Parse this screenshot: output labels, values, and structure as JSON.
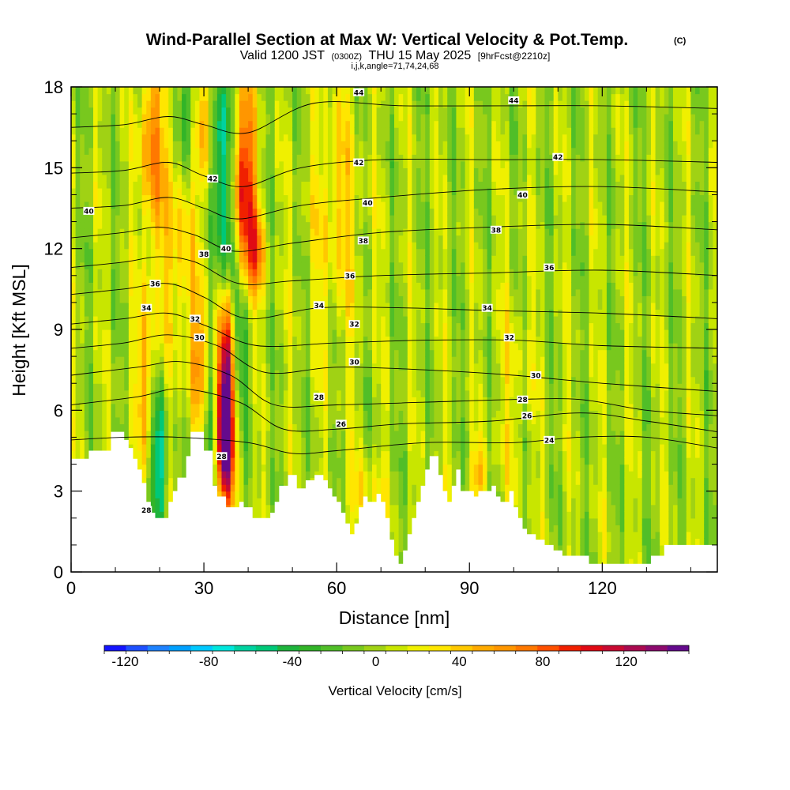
{
  "header": {
    "title": "Wind-Parallel Section at Max W: Vertical Velocity & Pot.Temp.",
    "copyright": "(C)",
    "valid_prefix": "Valid 1200 JST",
    "valid_utc": "(0300Z)",
    "valid_date": "THU 15 May 2025",
    "forecast": "[9hrFcst@2210z]",
    "indices": "i,j,k,angle=71,74,24,68"
  },
  "chart_data": {
    "type": "heatmap",
    "xlabel": "Distance [nm]",
    "ylabel": "Height [Kft MSL]",
    "xlim": [
      0,
      146
    ],
    "ylim": [
      0,
      18
    ],
    "x_ticks": [
      0,
      30,
      60,
      90,
      120
    ],
    "y_ticks": [
      0,
      3,
      6,
      9,
      12,
      15,
      18
    ],
    "colorbar": {
      "label": "Vertical Velocity [cm/s]",
      "range": [
        -130,
        150
      ],
      "ticks": [
        -120,
        -80,
        -40,
        0,
        40,
        80,
        120
      ],
      "colors": [
        "#1414ff",
        "#1e50ff",
        "#1e82ff",
        "#00a0ff",
        "#00c8ff",
        "#00e6dc",
        "#00d2a0",
        "#00c878",
        "#1eb43c",
        "#32b428",
        "#50be28",
        "#78c81e",
        "#a0d214",
        "#c8e600",
        "#f0f000",
        "#ffe600",
        "#ffc800",
        "#ffaa00",
        "#ff9600",
        "#ff7800",
        "#ff5000",
        "#f02000",
        "#e00a14",
        "#c80a32",
        "#aa0a50",
        "#8c0a6e",
        "#640a8c"
      ]
    },
    "terrain_kft": [
      [
        0,
        4.2
      ],
      [
        4,
        4.2
      ],
      [
        4,
        4.5
      ],
      [
        9,
        4.5
      ],
      [
        9,
        5.2
      ],
      [
        12,
        5.2
      ],
      [
        12,
        4.9
      ],
      [
        13,
        4.9
      ],
      [
        13,
        4.6
      ],
      [
        14,
        4.6
      ],
      [
        14,
        4.2
      ],
      [
        15,
        4.2
      ],
      [
        15,
        3.8
      ],
      [
        16,
        3.8
      ],
      [
        16,
        3.3
      ],
      [
        17,
        3.3
      ],
      [
        17,
        2.6
      ],
      [
        18,
        2.6
      ],
      [
        18,
        2.2
      ],
      [
        19,
        2.2
      ],
      [
        19,
        2.0
      ],
      [
        22,
        2.0
      ],
      [
        22,
        2.6
      ],
      [
        23,
        2.6
      ],
      [
        23,
        3.0
      ],
      [
        24,
        3.0
      ],
      [
        24,
        3.5
      ],
      [
        26,
        3.5
      ],
      [
        26,
        4.3
      ],
      [
        27,
        4.3
      ],
      [
        27,
        5.2
      ],
      [
        30,
        5.2
      ],
      [
        30,
        4.5
      ],
      [
        32,
        4.5
      ],
      [
        32,
        3.2
      ],
      [
        33,
        3.2
      ],
      [
        33,
        2.8
      ],
      [
        35,
        2.8
      ],
      [
        35,
        2.4
      ],
      [
        38,
        2.4
      ],
      [
        38,
        2.6
      ],
      [
        39,
        2.6
      ],
      [
        39,
        2.4
      ],
      [
        41,
        2.4
      ],
      [
        41,
        2.0
      ],
      [
        45,
        2.0
      ],
      [
        45,
        2.2
      ],
      [
        46,
        2.2
      ],
      [
        46,
        2.6
      ],
      [
        47,
        2.6
      ],
      [
        47,
        3.2
      ],
      [
        49,
        3.2
      ],
      [
        49,
        3.6
      ],
      [
        51,
        3.6
      ],
      [
        51,
        3.1
      ],
      [
        53,
        3.1
      ],
      [
        53,
        3.4
      ],
      [
        55,
        3.4
      ],
      [
        55,
        3.6
      ],
      [
        57,
        3.6
      ],
      [
        57,
        3.4
      ],
      [
        58,
        3.4
      ],
      [
        58,
        3.1
      ],
      [
        59,
        3.1
      ],
      [
        59,
        2.8
      ],
      [
        60,
        2.8
      ],
      [
        60,
        2.6
      ],
      [
        61,
        2.6
      ],
      [
        61,
        2.2
      ],
      [
        62,
        2.2
      ],
      [
        62,
        1.8
      ],
      [
        63,
        1.8
      ],
      [
        63,
        1.4
      ],
      [
        64,
        1.4
      ],
      [
        64,
        1.8
      ],
      [
        65,
        1.8
      ],
      [
        65,
        2.4
      ],
      [
        66,
        2.4
      ],
      [
        66,
        2.8
      ],
      [
        67,
        2.8
      ],
      [
        67,
        2.6
      ],
      [
        69,
        2.6
      ],
      [
        69,
        2.9
      ],
      [
        70,
        2.9
      ],
      [
        70,
        2.6
      ],
      [
        71,
        2.6
      ],
      [
        71,
        2.0
      ],
      [
        72,
        2.0
      ],
      [
        72,
        1.2
      ],
      [
        73,
        1.2
      ],
      [
        73,
        0.6
      ],
      [
        74,
        0.6
      ],
      [
        74,
        0.3
      ],
      [
        75,
        0.3
      ],
      [
        75,
        0.8
      ],
      [
        76,
        0.8
      ],
      [
        76,
        1.4
      ],
      [
        77,
        1.4
      ],
      [
        77,
        2.0
      ],
      [
        78,
        2.0
      ],
      [
        78,
        2.6
      ],
      [
        79,
        2.6
      ],
      [
        79,
        3.2
      ],
      [
        80,
        3.2
      ],
      [
        80,
        3.8
      ],
      [
        81,
        3.8
      ],
      [
        81,
        4.3
      ],
      [
        83,
        4.3
      ],
      [
        83,
        3.6
      ],
      [
        84,
        3.6
      ],
      [
        84,
        3.0
      ],
      [
        85,
        3.0
      ],
      [
        85,
        2.6
      ],
      [
        86,
        2.6
      ],
      [
        86,
        3.2
      ],
      [
        87,
        3.2
      ],
      [
        87,
        3.8
      ],
      [
        88,
        3.8
      ],
      [
        88,
        3.0
      ],
      [
        91,
        3.0
      ],
      [
        91,
        2.8
      ],
      [
        92,
        2.8
      ],
      [
        92,
        3.0
      ],
      [
        95,
        3.0
      ],
      [
        95,
        3.2
      ],
      [
        96,
        3.2
      ],
      [
        96,
        2.8
      ],
      [
        97,
        2.8
      ],
      [
        97,
        2.6
      ],
      [
        99,
        2.6
      ],
      [
        99,
        3.0
      ],
      [
        100,
        3.0
      ],
      [
        100,
        2.4
      ],
      [
        101,
        2.4
      ],
      [
        101,
        2.0
      ],
      [
        102,
        2.0
      ],
      [
        102,
        1.6
      ],
      [
        103,
        1.6
      ],
      [
        103,
        1.4
      ],
      [
        105,
        1.4
      ],
      [
        105,
        1.2
      ],
      [
        107,
        1.2
      ],
      [
        107,
        1.0
      ],
      [
        109,
        1.0
      ],
      [
        109,
        0.8
      ],
      [
        111,
        0.8
      ],
      [
        111,
        0.6
      ],
      [
        117,
        0.6
      ],
      [
        117,
        0.3
      ],
      [
        131,
        0.3
      ],
      [
        131,
        0.6
      ],
      [
        134,
        0.6
      ],
      [
        134,
        1.0
      ],
      [
        146,
        1.0
      ]
    ],
    "theta_contours": [
      {
        "label": "24",
        "pts": [
          [
            0,
            4.9
          ],
          [
            12,
            5.0
          ],
          [
            24,
            5.0
          ],
          [
            40,
            4.8
          ],
          [
            50,
            4.4
          ],
          [
            60,
            4.5
          ],
          [
            80,
            4.8
          ],
          [
            100,
            4.8
          ],
          [
            115,
            5.0
          ],
          [
            130,
            5.0
          ],
          [
            146,
            4.6
          ]
        ]
      },
      {
        "label": "26",
        "pts": [
          [
            0,
            6.2
          ],
          [
            15,
            6.5
          ],
          [
            25,
            6.8
          ],
          [
            38,
            6.3
          ],
          [
            48,
            5.3
          ],
          [
            60,
            5.3
          ],
          [
            75,
            5.5
          ],
          [
            95,
            5.6
          ],
          [
            115,
            5.9
          ],
          [
            130,
            5.6
          ],
          [
            146,
            5.2
          ]
        ]
      },
      {
        "label": "28",
        "pts": [
          [
            0,
            7.3
          ],
          [
            15,
            7.6
          ],
          [
            25,
            7.8
          ],
          [
            36,
            7.3
          ],
          [
            46,
            6.2
          ],
          [
            60,
            6.2
          ],
          [
            80,
            6.3
          ],
          [
            100,
            6.4
          ],
          [
            115,
            6.4
          ],
          [
            130,
            6.0
          ],
          [
            146,
            5.8
          ]
        ]
      },
      {
        "label": "30",
        "pts": [
          [
            0,
            8.3
          ],
          [
            12,
            8.5
          ],
          [
            22,
            8.8
          ],
          [
            33,
            8.4
          ],
          [
            44,
            7.4
          ],
          [
            60,
            7.6
          ],
          [
            80,
            7.5
          ],
          [
            100,
            7.3
          ],
          [
            120,
            7.0
          ],
          [
            146,
            6.7
          ]
        ]
      },
      {
        "label": "32",
        "pts": [
          [
            0,
            9.2
          ],
          [
            12,
            9.4
          ],
          [
            22,
            9.6
          ],
          [
            31,
            9.1
          ],
          [
            42,
            8.4
          ],
          [
            60,
            8.5
          ],
          [
            80,
            8.6
          ],
          [
            100,
            8.6
          ],
          [
            120,
            8.4
          ],
          [
            146,
            8.3
          ]
        ]
      },
      {
        "label": "34",
        "pts": [
          [
            0,
            10.3
          ],
          [
            12,
            10.5
          ],
          [
            22,
            10.7
          ],
          [
            30,
            10.2
          ],
          [
            40,
            9.4
          ],
          [
            56,
            9.8
          ],
          [
            75,
            9.8
          ],
          [
            95,
            9.7
          ],
          [
            120,
            9.6
          ],
          [
            146,
            9.4
          ]
        ]
      },
      {
        "label": "36",
        "pts": [
          [
            0,
            11.3
          ],
          [
            12,
            11.5
          ],
          [
            20,
            11.7
          ],
          [
            28,
            11.5
          ],
          [
            38,
            10.7
          ],
          [
            50,
            10.8
          ],
          [
            70,
            11.0
          ],
          [
            95,
            11.1
          ],
          [
            120,
            11.2
          ],
          [
            146,
            11.0
          ]
        ]
      },
      {
        "label": "38",
        "pts": [
          [
            0,
            12.4
          ],
          [
            12,
            12.6
          ],
          [
            20,
            12.8
          ],
          [
            28,
            12.5
          ],
          [
            37,
            11.9
          ],
          [
            50,
            12.2
          ],
          [
            70,
            12.6
          ],
          [
            95,
            12.8
          ],
          [
            120,
            12.9
          ],
          [
            146,
            12.7
          ]
        ]
      },
      {
        "label": "40",
        "pts": [
          [
            0,
            13.5
          ],
          [
            12,
            13.6
          ],
          [
            22,
            13.9
          ],
          [
            30,
            13.5
          ],
          [
            38,
            13.1
          ],
          [
            52,
            13.6
          ],
          [
            70,
            13.9
          ],
          [
            95,
            14.2
          ],
          [
            120,
            14.3
          ],
          [
            146,
            14.1
          ]
        ]
      },
      {
        "label": "42",
        "pts": [
          [
            0,
            14.8
          ],
          [
            12,
            14.9
          ],
          [
            22,
            15.2
          ],
          [
            30,
            14.7
          ],
          [
            39,
            14.3
          ],
          [
            52,
            15.0
          ],
          [
            70,
            15.3
          ],
          [
            95,
            15.3
          ],
          [
            120,
            15.3
          ],
          [
            146,
            15.2
          ]
        ]
      },
      {
        "label": "44",
        "pts": [
          [
            0,
            16.5
          ],
          [
            12,
            16.6
          ],
          [
            22,
            16.9
          ],
          [
            30,
            16.6
          ],
          [
            40,
            16.3
          ],
          [
            55,
            17.4
          ],
          [
            75,
            17.3
          ],
          [
            100,
            17.3
          ],
          [
            120,
            17.3
          ],
          [
            146,
            17.2
          ]
        ]
      }
    ],
    "theta_contour_labels": [
      {
        "label": "44",
        "x": 65,
        "y": 17.8
      },
      {
        "label": "44",
        "x": 100,
        "y": 17.5
      },
      {
        "label": "42",
        "x": 65,
        "y": 15.2
      },
      {
        "label": "42",
        "x": 110,
        "y": 15.4
      },
      {
        "label": "42",
        "x": 32,
        "y": 14.6
      },
      {
        "label": "40",
        "x": 4,
        "y": 13.4
      },
      {
        "label": "40",
        "x": 67,
        "y": 13.7
      },
      {
        "label": "40",
        "x": 102,
        "y": 14.0
      },
      {
        "label": "40",
        "x": 35,
        "y": 12.0
      },
      {
        "label": "38",
        "x": 30,
        "y": 11.8
      },
      {
        "label": "38",
        "x": 66,
        "y": 12.3
      },
      {
        "label": "38",
        "x": 96,
        "y": 12.7
      },
      {
        "label": "36",
        "x": 19,
        "y": 10.7
      },
      {
        "label": "36",
        "x": 63,
        "y": 11.0
      },
      {
        "label": "36",
        "x": 108,
        "y": 11.3
      },
      {
        "label": "34",
        "x": 17,
        "y": 9.8
      },
      {
        "label": "34",
        "x": 56,
        "y": 9.9
      },
      {
        "label": "34",
        "x": 94,
        "y": 9.8
      },
      {
        "label": "32",
        "x": 28,
        "y": 9.4
      },
      {
        "label": "32",
        "x": 64,
        "y": 9.2
      },
      {
        "label": "32",
        "x": 99,
        "y": 8.7
      },
      {
        "label": "30",
        "x": 29,
        "y": 8.7
      },
      {
        "label": "30",
        "x": 64,
        "y": 7.8
      },
      {
        "label": "30",
        "x": 105,
        "y": 7.3
      },
      {
        "label": "28",
        "x": 56,
        "y": 6.5
      },
      {
        "label": "28",
        "x": 102,
        "y": 6.4
      },
      {
        "label": "26",
        "x": 61,
        "y": 5.5
      },
      {
        "label": "26",
        "x": 103,
        "y": 5.8
      },
      {
        "label": "24",
        "x": 108,
        "y": 4.9
      },
      {
        "label": "28",
        "x": 34,
        "y": 4.3
      },
      {
        "label": "28",
        "x": 17,
        "y": 2.3
      }
    ],
    "w_features": [
      {
        "x": 35,
        "y": 6.4,
        "sx": 1.5,
        "sy": 2.6,
        "w": 155
      },
      {
        "x": 34.5,
        "y": 4.6,
        "sx": 1.0,
        "sy": 1.2,
        "w": 60
      },
      {
        "x": 39,
        "y": 14.0,
        "sx": 1.8,
        "sy": 3.0,
        "w": 105
      },
      {
        "x": 42,
        "y": 11.8,
        "sx": 1.4,
        "sy": 1.2,
        "w": 55
      },
      {
        "x": 18,
        "y": 15.8,
        "sx": 1.8,
        "sy": 2.5,
        "w": 65
      },
      {
        "x": 17,
        "y": 7.5,
        "sx": 1.4,
        "sy": 2.5,
        "w": 55
      },
      {
        "x": 24,
        "y": 13.0,
        "sx": 2.5,
        "sy": 4.0,
        "w": 45
      },
      {
        "x": 29,
        "y": 8.0,
        "sx": 1.5,
        "sy": 2.0,
        "w": 50
      },
      {
        "x": 30,
        "y": 16.5,
        "sx": 1.5,
        "sy": 2.0,
        "w": 55
      },
      {
        "x": 20,
        "y": 4.3,
        "sx": 1.3,
        "sy": 2.0,
        "w": -70
      },
      {
        "x": 26,
        "y": 17.0,
        "sx": 1.5,
        "sy": 2.0,
        "w": -65
      },
      {
        "x": 34,
        "y": 16.2,
        "sx": 1.6,
        "sy": 2.0,
        "w": -70
      },
      {
        "x": 35,
        "y": 12.2,
        "sx": 1.6,
        "sy": 1.8,
        "w": -60
      },
      {
        "x": 38,
        "y": 8.8,
        "sx": 1.8,
        "sy": 2.0,
        "w": -55
      },
      {
        "x": 31,
        "y": 5.0,
        "sx": 1.2,
        "sy": 1.5,
        "w": -40
      },
      {
        "x": 60,
        "y": 12.0,
        "sx": 5.0,
        "sy": 3.0,
        "w": 18
      },
      {
        "x": 66,
        "y": 3.0,
        "sx": 3.0,
        "sy": 0.8,
        "w": 30
      },
      {
        "x": 92,
        "y": 3.6,
        "sx": 1.5,
        "sy": 0.8,
        "w": 40
      },
      {
        "x": 100,
        "y": 7.0,
        "sx": 3.0,
        "sy": 3.0,
        "w": 18
      },
      {
        "x": 60,
        "y": 15.0,
        "sx": 3.0,
        "sy": 3.0,
        "w": 20
      }
    ]
  }
}
